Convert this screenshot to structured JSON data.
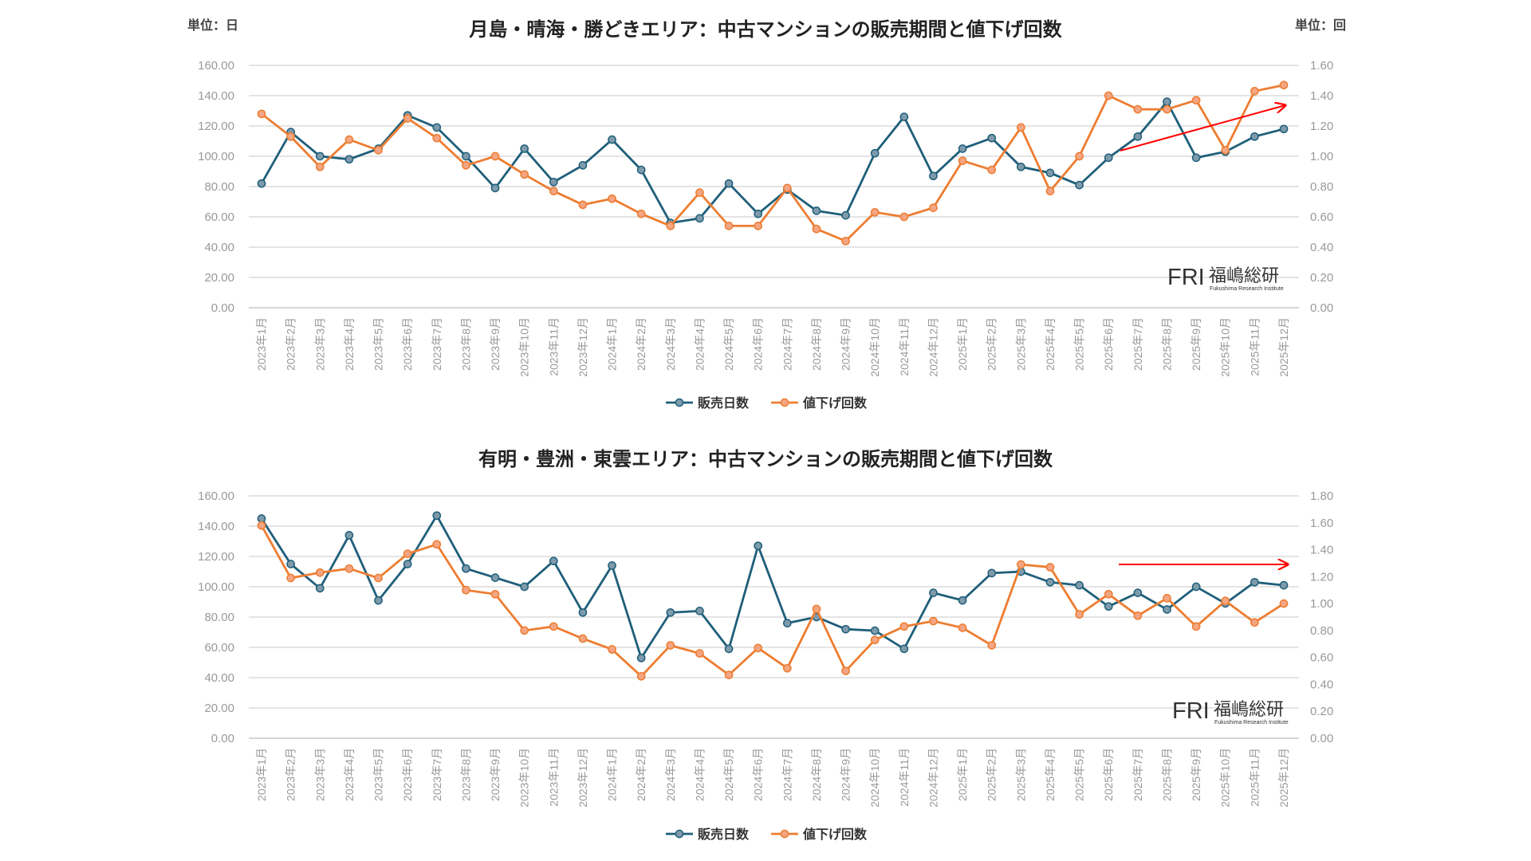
{
  "chart_data": [
    {
      "type": "line",
      "title": "月島・晴海・勝どきエリア：中古マンションの販売期間と値下げ回数",
      "unit_left": "単位：日",
      "unit_right": "単位：回",
      "categories": [
        "2023年1月",
        "2023年2月",
        "2023年3月",
        "2023年4月",
        "2023年5月",
        "2023年6月",
        "2023年7月",
        "2023年8月",
        "2023年9月",
        "2023年10月",
        "2023年11月",
        "2023年12月",
        "2024年1月",
        "2024年2月",
        "2024年3月",
        "2024年4月",
        "2024年5月",
        "2024年6月",
        "2024年7月",
        "2024年8月",
        "2024年9月",
        "2024年10月",
        "2024年11月",
        "2024年12月",
        "2025年1月",
        "2025年2月",
        "2025年3月",
        "2025年4月",
        "2025年5月",
        "2025年6月",
        "2025年7月",
        "2025年8月",
        "2025年9月",
        "2025年10月",
        "2025年11月",
        "2025年12月"
      ],
      "ylim_left": [
        0,
        160
      ],
      "ylim_right": [
        0,
        1.6
      ],
      "yticks_left": [
        "0.00",
        "20.00",
        "40.00",
        "60.00",
        "80.00",
        "100.00",
        "120.00",
        "140.00",
        "160.00"
      ],
      "yticks_right": [
        "0.00",
        "0.20",
        "0.40",
        "0.60",
        "0.80",
        "1.00",
        "1.20",
        "1.40",
        "1.60"
      ],
      "grid": true,
      "legend_position": "bottom",
      "series": [
        {
          "name": "販売日数",
          "axis": "left",
          "color": "#1f5f7a",
          "values": [
            82,
            116,
            100,
            98,
            105,
            127,
            119,
            100,
            79,
            105,
            83,
            94,
            111,
            91,
            56,
            59,
            82,
            62,
            78,
            64,
            61,
            102,
            126,
            87,
            105,
            112,
            93,
            89,
            81,
            99,
            113,
            136,
            99,
            103,
            113,
            118
          ]
        },
        {
          "name": "値下げ回数",
          "axis": "right",
          "color": "#ed7d31",
          "values": [
            1.28,
            1.13,
            0.93,
            1.11,
            1.04,
            1.25,
            1.12,
            0.94,
            1.0,
            0.88,
            0.77,
            0.68,
            0.72,
            0.62,
            0.54,
            0.76,
            0.54,
            0.54,
            0.79,
            0.52,
            0.44,
            0.63,
            0.6,
            0.66,
            0.97,
            0.91,
            1.19,
            0.77,
            1.0,
            1.4,
            1.31,
            1.31,
            1.37,
            1.04,
            1.43,
            1.47
          ]
        }
      ],
      "annotation": {
        "type": "arrow",
        "color": "#ff0000",
        "direction": "up-right"
      }
    },
    {
      "type": "line",
      "title": "有明・豊洲・東雲エリア：中古マンションの販売期間と値下げ回数",
      "categories": [
        "2023年1月",
        "2023年2月",
        "2023年3月",
        "2023年4月",
        "2023年5月",
        "2023年6月",
        "2023年7月",
        "2023年8月",
        "2023年9月",
        "2023年10月",
        "2023年11月",
        "2023年12月",
        "2024年1月",
        "2024年2月",
        "2024年3月",
        "2024年4月",
        "2024年5月",
        "2024年6月",
        "2024年7月",
        "2024年8月",
        "2024年9月",
        "2024年10月",
        "2024年11月",
        "2024年12月",
        "2025年1月",
        "2025年2月",
        "2025年3月",
        "2025年4月",
        "2025年5月",
        "2025年6月",
        "2025年7月",
        "2025年8月",
        "2025年9月",
        "2025年10月",
        "2025年11月",
        "2025年12月"
      ],
      "ylim_left": [
        0,
        160
      ],
      "ylim_right": [
        0,
        1.8
      ],
      "yticks_left": [
        "0.00",
        "20.00",
        "40.00",
        "60.00",
        "80.00",
        "100.00",
        "120.00",
        "140.00",
        "160.00"
      ],
      "yticks_right": [
        "0.00",
        "0.20",
        "0.40",
        "0.60",
        "0.80",
        "1.00",
        "1.20",
        "1.40",
        "1.60",
        "1.80"
      ],
      "grid": true,
      "legend_position": "bottom",
      "series": [
        {
          "name": "販売日数",
          "axis": "left",
          "color": "#1f5f7a",
          "values": [
            145,
            115,
            99,
            134,
            91,
            115,
            147,
            112,
            106,
            100,
            117,
            83,
            114,
            53,
            83,
            84,
            59,
            127,
            76,
            80,
            72,
            71,
            59,
            96,
            91,
            109,
            110,
            103,
            101,
            87,
            96,
            85,
            100,
            89,
            103,
            101
          ]
        },
        {
          "name": "値下げ回数",
          "axis": "right",
          "color": "#ed7d31",
          "values": [
            1.58,
            1.19,
            1.23,
            1.26,
            1.19,
            1.37,
            1.44,
            1.1,
            1.07,
            0.8,
            0.83,
            0.74,
            0.66,
            0.46,
            0.69,
            0.63,
            0.47,
            0.67,
            0.52,
            0.96,
            0.5,
            0.73,
            0.83,
            0.87,
            0.82,
            0.69,
            1.29,
            1.27,
            0.92,
            1.07,
            0.91,
            1.04,
            0.83,
            1.02,
            0.86,
            1.0
          ]
        }
      ],
      "annotation": {
        "type": "arrow",
        "color": "#ff0000",
        "direction": "right"
      }
    }
  ],
  "logo": {
    "mark": "FRI",
    "name": "福嶋総研",
    "sub": "Fukushima Research Institute"
  }
}
